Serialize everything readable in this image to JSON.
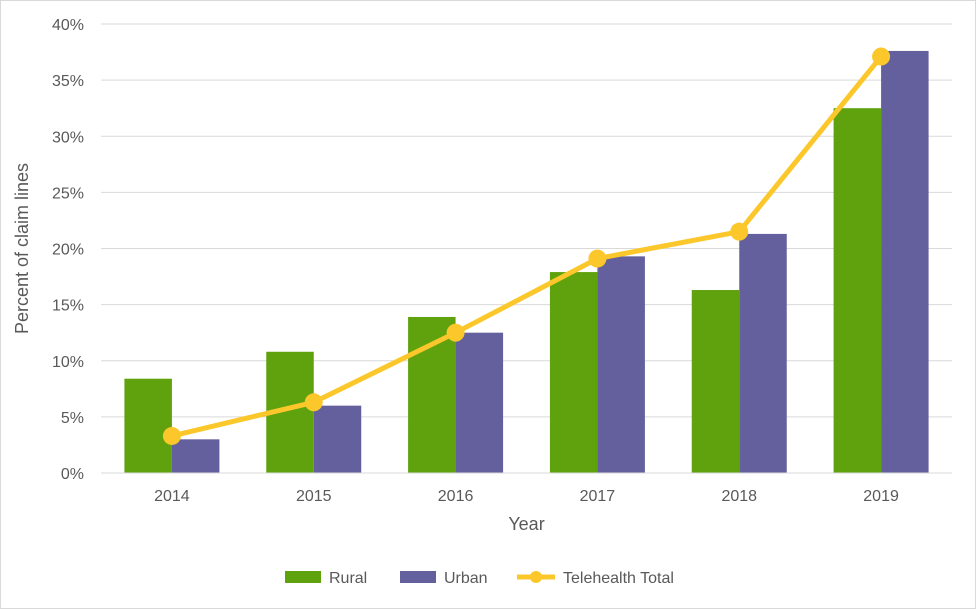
{
  "chart_data": {
    "type": "bar",
    "title": "",
    "xlabel": "Year",
    "ylabel": "Percent of claim lines",
    "categories": [
      "2014",
      "2015",
      "2016",
      "2017",
      "2018",
      "2019"
    ],
    "series": [
      {
        "name": "Rural",
        "kind": "bar",
        "color": "#5fa20d",
        "values": [
          8.4,
          10.8,
          13.9,
          17.9,
          16.3,
          32.5
        ]
      },
      {
        "name": "Urban",
        "kind": "bar",
        "color": "#64609d",
        "values": [
          3.0,
          6.0,
          12.5,
          19.3,
          21.3,
          37.6
        ]
      },
      {
        "name": "Telehealth Total",
        "kind": "line",
        "color": "#fbc72b",
        "values": [
          3.3,
          6.3,
          12.5,
          19.1,
          21.5,
          37.1
        ]
      }
    ],
    "ylim": [
      0,
      40
    ],
    "yticks": [
      0,
      5,
      10,
      15,
      20,
      25,
      30,
      35,
      40
    ],
    "ytick_labels": [
      "0%",
      "5%",
      "10%",
      "15%",
      "20%",
      "25%",
      "30%",
      "35%",
      "40%"
    ],
    "grid": true,
    "legend_position": "bottom"
  }
}
